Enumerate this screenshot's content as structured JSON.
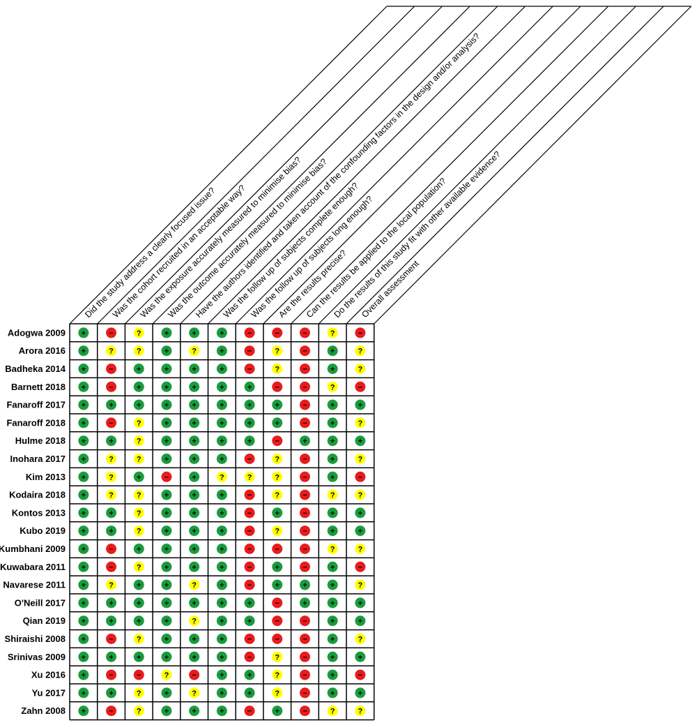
{
  "questions": [
    "Did the study address a clearly focused issue?",
    "Was the cohort recruited in an acceptable way?",
    "Was the exposure accurately measured to minimise bias?",
    "Was the outcome accurately measured to minimise bias?",
    "Have the authors identified and taken account of the confounding factors in the design and/or analysis?",
    "Was the follow up of subjects complete enough?",
    "Was the follow up of subjects long enough?",
    "Are the results precise?",
    "Can the results be applied to the local population?",
    "Do the results of this study fit with other available evidence?",
    "Overall assessment"
  ],
  "judgement_symbols": {
    "low": "+",
    "unclear": "?",
    "high": "−"
  },
  "judgement_colors": {
    "low": "#1a9c3e",
    "unclear": "#ffff00",
    "high": "#e81c1c"
  },
  "studies": [
    {
      "name": "Adogwa 2009",
      "judgements": [
        "low",
        "high",
        "unclear",
        "low",
        "low",
        "low",
        "high",
        "high",
        "high",
        "unclear",
        "high"
      ]
    },
    {
      "name": "Arora 2016",
      "judgements": [
        "low",
        "unclear",
        "unclear",
        "low",
        "unclear",
        "low",
        "high",
        "unclear",
        "high",
        "low",
        "unclear"
      ]
    },
    {
      "name": "Badheka 2014",
      "judgements": [
        "low",
        "high",
        "low",
        "low",
        "low",
        "low",
        "high",
        "unclear",
        "high",
        "low",
        "unclear"
      ]
    },
    {
      "name": "Barnett 2018",
      "judgements": [
        "low",
        "high",
        "low",
        "low",
        "low",
        "low",
        "low",
        "high",
        "high",
        "unclear",
        "high"
      ]
    },
    {
      "name": "Fanaroff 2017",
      "judgements": [
        "low",
        "low",
        "low",
        "low",
        "low",
        "low",
        "low",
        "low",
        "high",
        "low",
        "low"
      ]
    },
    {
      "name": "Fanaroff 2018",
      "judgements": [
        "low",
        "high",
        "unclear",
        "low",
        "low",
        "low",
        "low",
        "low",
        "high",
        "low",
        "unclear"
      ]
    },
    {
      "name": "Hulme 2018",
      "judgements": [
        "low",
        "low",
        "unclear",
        "low",
        "low",
        "low",
        "low",
        "high",
        "low",
        "low",
        "low"
      ]
    },
    {
      "name": "Inohara 2017",
      "judgements": [
        "low",
        "unclear",
        "unclear",
        "low",
        "low",
        "low",
        "high",
        "unclear",
        "high",
        "low",
        "unclear"
      ]
    },
    {
      "name": "Kim 2013",
      "judgements": [
        "low",
        "unclear",
        "low",
        "high",
        "low",
        "unclear",
        "unclear",
        "unclear",
        "high",
        "low",
        "high"
      ]
    },
    {
      "name": "Kodaira 2018",
      "judgements": [
        "low",
        "unclear",
        "unclear",
        "low",
        "low",
        "low",
        "high",
        "unclear",
        "high",
        "unclear",
        "unclear"
      ]
    },
    {
      "name": "Kontos 2013",
      "judgements": [
        "low",
        "low",
        "unclear",
        "low",
        "low",
        "low",
        "high",
        "low",
        "high",
        "low",
        "low"
      ]
    },
    {
      "name": "Kubo 2019",
      "judgements": [
        "low",
        "low",
        "unclear",
        "low",
        "low",
        "low",
        "high",
        "unclear",
        "high",
        "low",
        "low"
      ]
    },
    {
      "name": "Kumbhani 2009",
      "judgements": [
        "low",
        "high",
        "low",
        "low",
        "low",
        "low",
        "high",
        "high",
        "high",
        "unclear",
        "unclear"
      ]
    },
    {
      "name": "Kuwabara 2011",
      "judgements": [
        "low",
        "high",
        "unclear",
        "low",
        "low",
        "low",
        "high",
        "low",
        "high",
        "low",
        "high"
      ]
    },
    {
      "name": "Navarese 2011",
      "judgements": [
        "low",
        "unclear",
        "low",
        "low",
        "unclear",
        "low",
        "high",
        "low",
        "low",
        "low",
        "unclear"
      ]
    },
    {
      "name": "O'Neill 2017",
      "judgements": [
        "low",
        "low",
        "low",
        "low",
        "low",
        "low",
        "low",
        "high",
        "low",
        "low",
        "low"
      ]
    },
    {
      "name": "Qian 2019",
      "judgements": [
        "low",
        "low",
        "low",
        "low",
        "unclear",
        "low",
        "low",
        "high",
        "high",
        "low",
        "low"
      ]
    },
    {
      "name": "Shiraishi 2008",
      "judgements": [
        "low",
        "high",
        "unclear",
        "low",
        "low",
        "low",
        "high",
        "high",
        "high",
        "low",
        "unclear"
      ]
    },
    {
      "name": "Srinivas 2009",
      "judgements": [
        "low",
        "low",
        "low",
        "low",
        "low",
        "low",
        "high",
        "unclear",
        "high",
        "low",
        "low"
      ]
    },
    {
      "name": "Xu 2016",
      "judgements": [
        "low",
        "high",
        "high",
        "unclear",
        "high",
        "low",
        "low",
        "unclear",
        "high",
        "low",
        "high"
      ]
    },
    {
      "name": "Yu 2017",
      "judgements": [
        "low",
        "low",
        "unclear",
        "low",
        "unclear",
        "low",
        "low",
        "unclear",
        "high",
        "low",
        "low"
      ]
    },
    {
      "name": "Zahn 2008",
      "judgements": [
        "low",
        "high",
        "unclear",
        "low",
        "low",
        "low",
        "high",
        "low",
        "high",
        "unclear",
        "unclear"
      ]
    }
  ]
}
